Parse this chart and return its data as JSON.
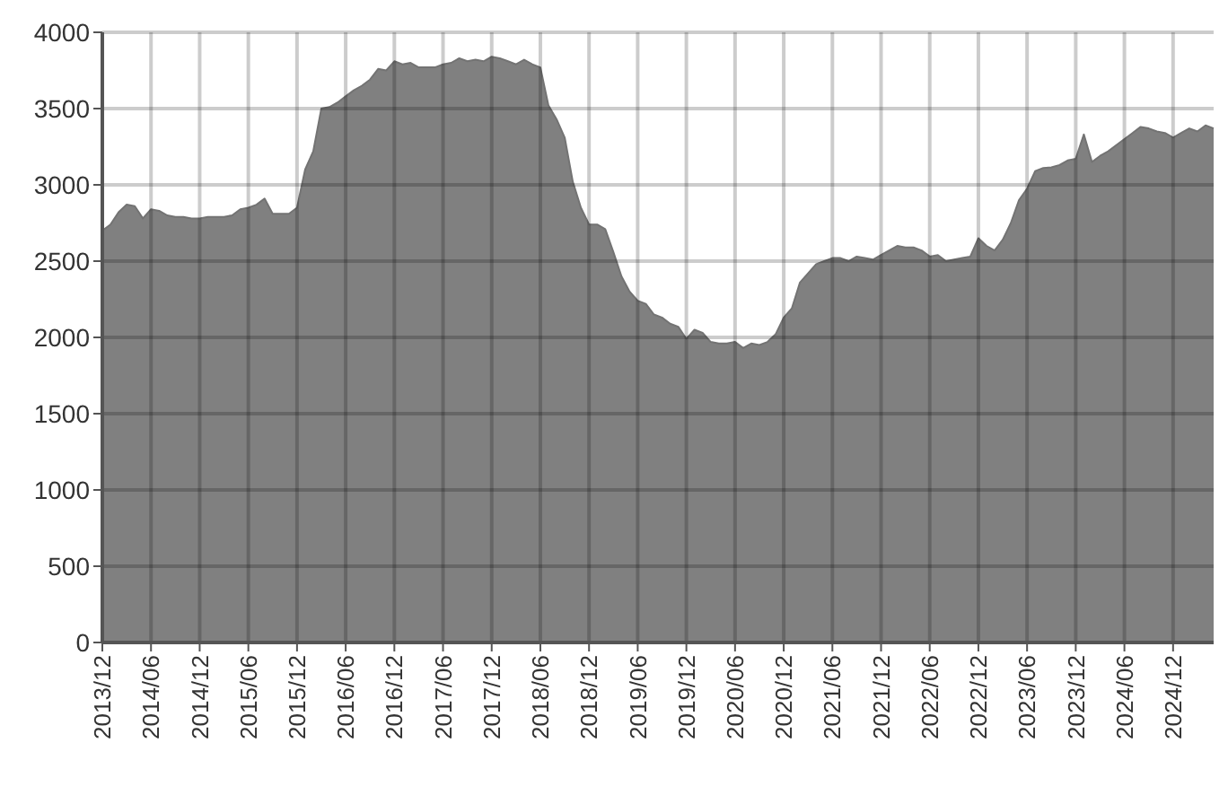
{
  "chart_data": {
    "type": "area",
    "categories": [
      "2013/12",
      null,
      null,
      null,
      null,
      null,
      "2014/06",
      null,
      null,
      null,
      null,
      null,
      "2014/12",
      null,
      null,
      null,
      null,
      null,
      "2015/06",
      null,
      null,
      null,
      null,
      null,
      "2015/12",
      null,
      null,
      null,
      null,
      null,
      "2016/06",
      null,
      null,
      null,
      null,
      null,
      "2016/12",
      null,
      null,
      null,
      null,
      null,
      "2017/06",
      null,
      null,
      null,
      null,
      null,
      "2017/12",
      null,
      null,
      null,
      null,
      null,
      "2018/06",
      null,
      null,
      null,
      null,
      null,
      "2018/12",
      null,
      null,
      null,
      null,
      null,
      "2019/06",
      null,
      null,
      null,
      null,
      null,
      "2019/12",
      null,
      null,
      null,
      null,
      null,
      "2020/06",
      null,
      null,
      null,
      null,
      null,
      "2020/12",
      null,
      null,
      null,
      null,
      null,
      "2021/06",
      null,
      null,
      null,
      null,
      null,
      "2021/12",
      null,
      null,
      null,
      null,
      null,
      "2022/06",
      null,
      null,
      null,
      null,
      null,
      "2022/12",
      null,
      null,
      null,
      null,
      null,
      "2023/06",
      null,
      null,
      null,
      null,
      null,
      "2023/12",
      null,
      null,
      null,
      null,
      null,
      "2024/06",
      null,
      null,
      null,
      null,
      null,
      "2024/12",
      null,
      null,
      null,
      null,
      null
    ],
    "series": [
      {
        "color": "#808080",
        "values": [
          2700,
          2740,
          2820,
          2870,
          2860,
          2780,
          2840,
          2830,
          2800,
          2790,
          2790,
          2780,
          2780,
          2790,
          2790,
          2790,
          2800,
          2840,
          2850,
          2870,
          2910,
          2810,
          2810,
          2810,
          2850,
          3100,
          3220,
          3500,
          3510,
          3540,
          3580,
          3620,
          3650,
          3690,
          3760,
          3750,
          3810,
          3790,
          3800,
          3770,
          3770,
          3770,
          3790,
          3800,
          3830,
          3810,
          3820,
          3810,
          3840,
          3830,
          3810,
          3790,
          3820,
          3790,
          3770,
          3520,
          3430,
          3310,
          3020,
          2850,
          2740,
          2740,
          2710,
          2560,
          2400,
          2300,
          2240,
          2220,
          2150,
          2130,
          2090,
          2070,
          1990,
          2050,
          2030,
          1970,
          1960,
          1960,
          1970,
          1930,
          1960,
          1950,
          1970,
          2020,
          2130,
          2190,
          2360,
          2420,
          2480,
          2500,
          2520,
          2520,
          2500,
          2530,
          2520,
          2510,
          2540,
          2570,
          2600,
          2590,
          2590,
          2570,
          2530,
          2540,
          2500,
          2510,
          2520,
          2530,
          2650,
          2600,
          2570,
          2640,
          2750,
          2900,
          2975,
          3090,
          3110,
          3115,
          3130,
          3160,
          3170,
          3330,
          3150,
          3190,
          3220,
          3260,
          3300,
          3340,
          3380,
          3370,
          3350,
          3340,
          3310,
          3340,
          3370,
          3350,
          3390,
          3370
        ]
      }
    ],
    "ylim": [
      0,
      4000
    ],
    "yticks": [
      0,
      500,
      1000,
      1500,
      2000,
      2500,
      3000,
      3500,
      4000
    ],
    "grid": true
  }
}
